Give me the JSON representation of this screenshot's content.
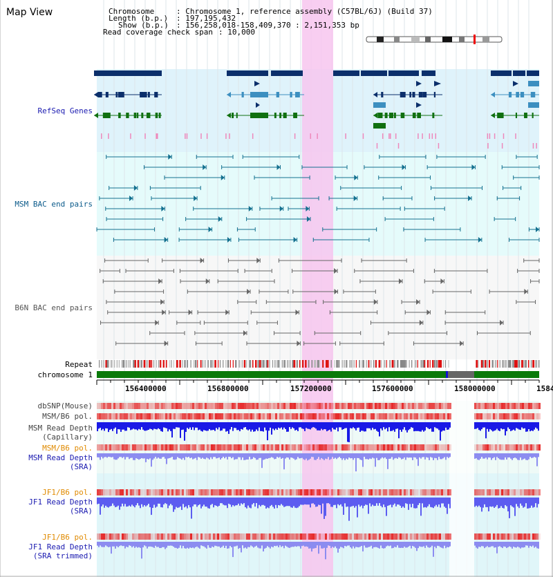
{
  "title": "Map View",
  "header": {
    "chromosome_label": "Chromosome",
    "chromosome_value": ": Chromosome 1, reference assembly (C57BL/6J) (Build 37)",
    "length_label": "Length (b.p.)",
    "length_value": ": 197,195,432",
    "show_label": "Show (b.p.)",
    "show_value": ": 156,258,018-158,409,370 : 2,151,353 bp",
    "coverage_label": "Read coverage check span",
    "coverage_value": ": 10,000"
  },
  "tracks": {
    "refseq": "RefSeq Genes",
    "msm_bac": "MSM BAC end pairs",
    "b6n_bac": "B6N BAC end pairs",
    "repeat": "Repeat",
    "chromosome": "chromosome 1",
    "dbsnp": "dbSNP(Mouse)",
    "msm_b6_pol_1": "MSM/B6 pol.",
    "msm_depth_cap_1": "MSM Read Depth",
    "msm_depth_cap_2": "(Capillary)",
    "msm_b6_pol_2": "MSM/B6 pol.",
    "msm_depth_sra_1": "MSM Read Depth",
    "msm_depth_sra_2": "(SRA)",
    "jf1_b6_pol_1": "JF1/B6 pol.",
    "jf1_depth_sra_1": "JF1 Read Depth",
    "jf1_depth_sra_2": "(SRA)",
    "jf1_b6_pol_2": "JF1/B6 pol.",
    "jf1_depth_trim_1": "JF1 Read Depth",
    "jf1_depth_trim_2": "(SRA trimmed)"
  },
  "axis": {
    "ticks": [
      "156400000",
      "156800000",
      "157200000",
      "157600000",
      "158000000",
      "1584"
    ]
  },
  "colors": {
    "refseq_dark": "#0b2f6b",
    "refseq_mid": "#3c8fc0",
    "refseq_green": "#107010",
    "highlight": "#f6c6ef",
    "chromosome_bar": "#0a7a0a"
  }
}
